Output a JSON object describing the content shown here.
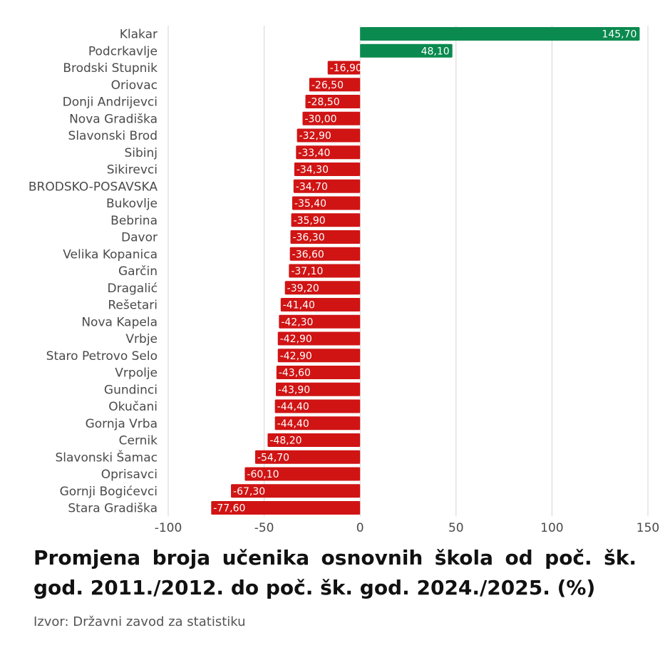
{
  "chart_data": {
    "type": "bar",
    "orientation": "horizontal",
    "title": "Promjena broja učenika osnovnih škola od poč. šk. god. 2011./2012. do poč. šk. god. 2024./2025. (%)",
    "source": "Izvor: Državni zavod za statistiku",
    "categories": [
      "Klakar",
      "Podcrkavlje",
      "Brodski Stupnik",
      "Oriovac",
      "Donji Andrijevci",
      "Nova Gradiška",
      "Slavonski Brod",
      "Sibinj",
      "Sikirevci",
      "BRODSKO-POSAVSKA",
      "Bukovlje",
      "Bebrina",
      "Davor",
      "Velika Kopanica",
      "Garčin",
      "Dragalić",
      "Rešetari",
      "Nova Kapela",
      "Vrbje",
      "Staro Petrovo Selo",
      "Vrpolje",
      "Gundinci",
      "Okučani",
      "Gornja Vrba",
      "Cernik",
      "Slavonski Šamac",
      "Oprisavci",
      "Gornji Bogićevci",
      "Stara Gradiška"
    ],
    "values": [
      145.7,
      48.1,
      -16.9,
      -26.5,
      -28.5,
      -30.0,
      -32.9,
      -33.4,
      -34.3,
      -34.7,
      -35.4,
      -35.9,
      -36.3,
      -36.6,
      -37.1,
      -39.2,
      -41.4,
      -42.3,
      -42.9,
      -42.9,
      -43.6,
      -43.9,
      -44.4,
      -44.4,
      -48.2,
      -54.7,
      -60.1,
      -67.3,
      -77.6
    ],
    "value_labels": [
      "145,70",
      "48,10",
      "-16,90",
      "-26,50",
      "-28,50",
      "-30,00",
      "-32,90",
      "-33,40",
      "-34,30",
      "-34,70",
      "-35,40",
      "-35,90",
      "-36,30",
      "-36,60",
      "-37,10",
      "-39,20",
      "-41,40",
      "-42,30",
      "-42,90",
      "-42,90",
      "-43,60",
      "-43,90",
      "-44,40",
      "-44,40",
      "-48,20",
      "-54,70",
      "-60,10",
      "-67,30",
      "-77,60"
    ],
    "xlim": [
      -100,
      150
    ],
    "xticks": [
      -100,
      -50,
      0,
      50,
      100,
      150
    ],
    "xtick_labels": [
      "-100",
      "-50",
      "0",
      "50",
      "100",
      "150"
    ],
    "grid": true,
    "colors": {
      "positive": "#0a8a4f",
      "negative": "#d01414",
      "grid": "#d4d4d4"
    }
  }
}
